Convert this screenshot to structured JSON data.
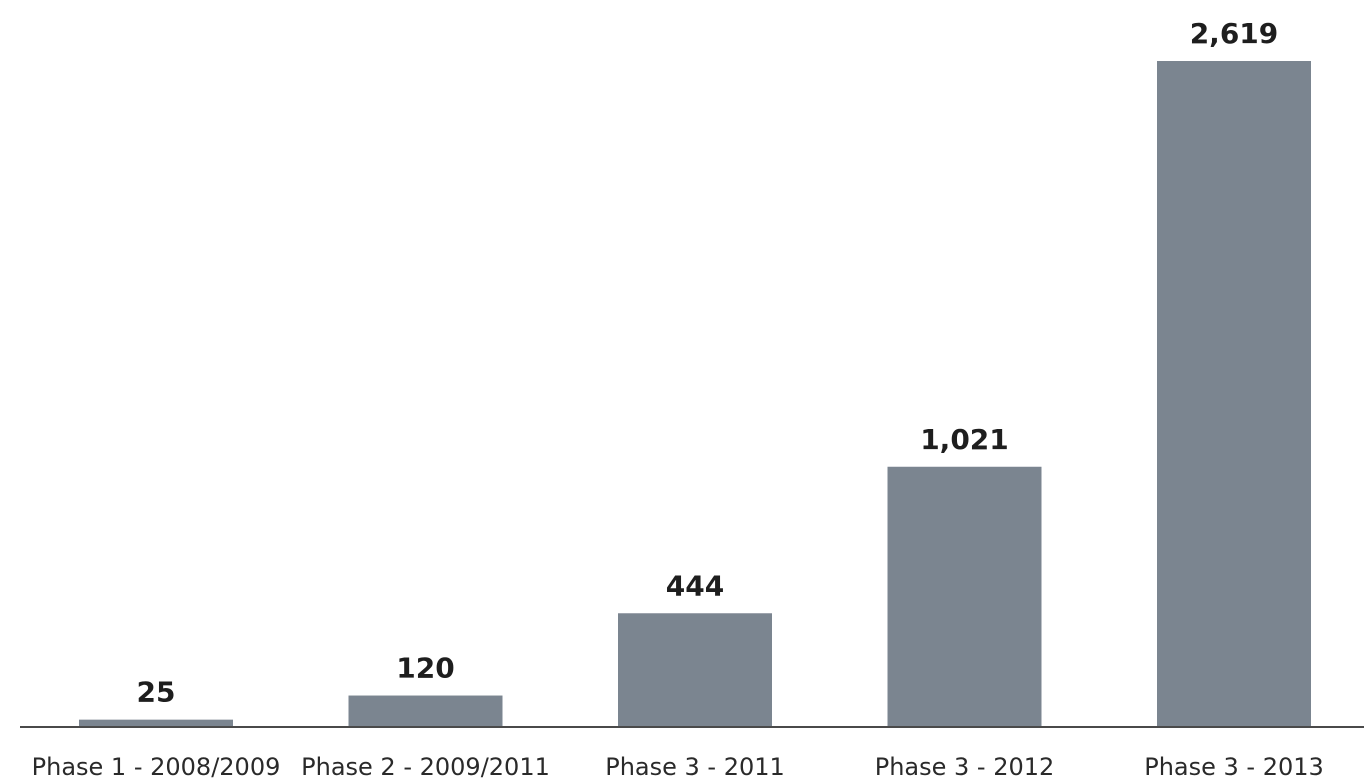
{
  "chart_data": {
    "type": "bar",
    "title": "",
    "xlabel": "",
    "ylabel": "",
    "categories": [
      "Phase 1 - 2008/2009",
      "Phase 2 - 2009/2011",
      "Phase 3 - 2011",
      "Phase 3 - 2012",
      "Phase 3 - 2013"
    ],
    "values": [
      25,
      120,
      444,
      1021,
      2619
    ],
    "value_labels": [
      "25",
      "120",
      "444",
      "1,021",
      "2,619"
    ],
    "ylim": [
      0,
      2619
    ],
    "grid": false,
    "legend": "none",
    "colors": {
      "bar": "#7b8590",
      "axis": "#4a4a4a",
      "text": "#1e1e1e"
    }
  }
}
